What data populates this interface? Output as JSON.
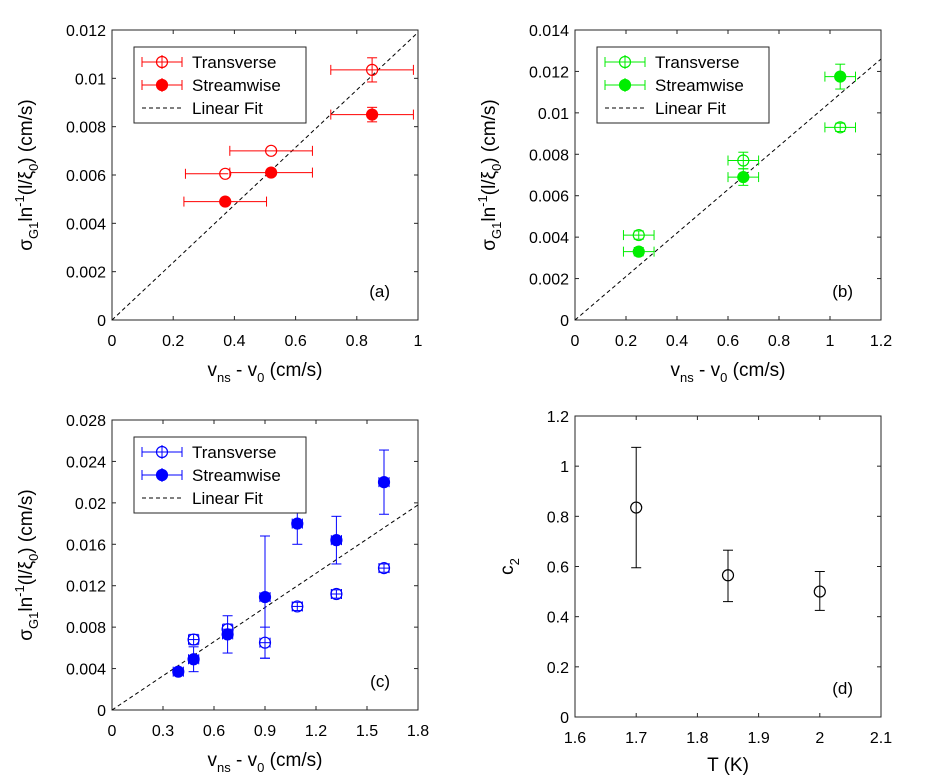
{
  "figure": {
    "panels": [
      "a",
      "b",
      "c",
      "d"
    ]
  },
  "chart_data": [
    {
      "id": "a",
      "type": "scatter",
      "panel_label": "(a)",
      "color": "#ff0000",
      "xlabel": {
        "main": "v",
        "sub1": "ns",
        "mid": " - v",
        "sub2": "0",
        "end": " (cm/s)"
      },
      "ylabel": {
        "sigma": "σ",
        "sub": "G1",
        "ln": "ln",
        "sup": "-1",
        "rest1": "(l/ξ",
        "sub0": "0",
        "rest2": ") (cm/s)"
      },
      "xlim": [
        0,
        1
      ],
      "ylim": [
        0,
        0.012
      ],
      "xticks": [
        0,
        0.2,
        0.4,
        0.6,
        0.8,
        1
      ],
      "xtick_labels": [
        "0",
        "0.2",
        "0.4",
        "0.6",
        "0.8",
        "1"
      ],
      "yticks": [
        0,
        0.002,
        0.004,
        0.006,
        0.008,
        0.01,
        0.012
      ],
      "ytick_labels": [
        "0",
        "0.002",
        "0.004",
        "0.006",
        "0.008",
        "0.01",
        "0.012"
      ],
      "legend": {
        "position": "top-left",
        "entries": [
          "Transverse",
          "Streamwise",
          "Linear Fit"
        ]
      },
      "series": [
        {
          "name": "Transverse",
          "marker": "open-circle",
          "points": [
            {
              "x": 0.37,
              "y": 0.00605,
              "xerr": 0.0,
              "yerr": 0.0
            },
            {
              "x": 0.52,
              "y": 0.007,
              "xerr": 0.135,
              "yerr": 0.0
            },
            {
              "x": 0.85,
              "y": 0.01035,
              "xerr": 0.135,
              "yerr": 0.0005
            }
          ]
        },
        {
          "name": "Streamwise",
          "marker": "filled-circle",
          "points": [
            {
              "x": 0.37,
              "y": 0.0049,
              "xerr": 0.135,
              "yerr": 0.0
            },
            {
              "x": 0.52,
              "y": 0.0061,
              "xerr": 0.135,
              "yerr": 0.0
            },
            {
              "x": 0.85,
              "y": 0.0085,
              "xerr": 0.135,
              "yerr": 0.0003
            }
          ]
        },
        {
          "name": "Linear Fit",
          "line": "dashed",
          "x": [
            0,
            1
          ],
          "y": [
            0,
            0.0119
          ]
        }
      ],
      "extra_hbars": [
        {
          "y": 0.00605,
          "x1": 0.24,
          "x2": 0.38
        }
      ]
    },
    {
      "id": "b",
      "type": "scatter",
      "panel_label": "(b)",
      "color": "#00ee00",
      "xlabel": {
        "main": "v",
        "sub1": "ns",
        "mid": " - v",
        "sub2": "0",
        "end": " (cm/s)"
      },
      "ylabel": {
        "sigma": "σ",
        "sub": "G1",
        "ln": "ln",
        "sup": "-1",
        "rest1": "(l/ξ",
        "sub0": "0",
        "rest2": ") (cm/s)"
      },
      "xlim": [
        0,
        1.2
      ],
      "ylim": [
        0,
        0.014
      ],
      "xticks": [
        0,
        0.2,
        0.4,
        0.6,
        0.8,
        1,
        1.2
      ],
      "xtick_labels": [
        "0",
        "0.2",
        "0.4",
        "0.6",
        "0.8",
        "1",
        "1.2"
      ],
      "yticks": [
        0,
        0.002,
        0.004,
        0.006,
        0.008,
        0.01,
        0.012,
        0.014
      ],
      "ytick_labels": [
        "0",
        "0.002",
        "0.004",
        "0.006",
        "0.008",
        "0.01",
        "0.012",
        "0.014"
      ],
      "legend": {
        "position": "top-left",
        "entries": [
          "Transverse",
          "Streamwise",
          "Linear Fit"
        ]
      },
      "series": [
        {
          "name": "Transverse",
          "marker": "open-circle",
          "points": [
            {
              "x": 0.25,
              "y": 0.0041,
              "xerr": 0.06,
              "yerr": 0.0002
            },
            {
              "x": 0.66,
              "y": 0.0077,
              "xerr": 0.06,
              "yerr": 0.0004
            },
            {
              "x": 1.04,
              "y": 0.0093,
              "xerr": 0.06,
              "yerr": 0.0002
            }
          ]
        },
        {
          "name": "Streamwise",
          "marker": "filled-circle",
          "points": [
            {
              "x": 0.25,
              "y": 0.0033,
              "xerr": 0.06,
              "yerr": 0.0002
            },
            {
              "x": 0.66,
              "y": 0.0069,
              "xerr": 0.06,
              "yerr": 0.0004
            },
            {
              "x": 1.04,
              "y": 0.01175,
              "xerr": 0.06,
              "yerr": 0.0006
            }
          ]
        },
        {
          "name": "Linear Fit",
          "line": "dashed",
          "x": [
            0,
            1.2
          ],
          "y": [
            0,
            0.0126
          ]
        }
      ]
    },
    {
      "id": "c",
      "type": "scatter",
      "panel_label": "(c)",
      "color": "#0000ff",
      "xlabel": {
        "main": "v",
        "sub1": "ns",
        "mid": " - v",
        "sub2": "0",
        "end": " (cm/s)"
      },
      "ylabel": {
        "sigma": "σ",
        "sub": "G1",
        "ln": "ln",
        "sup": "-1",
        "rest1": "(l/ξ",
        "sub0": "0",
        "rest2": ") (cm/s)"
      },
      "xlim": [
        0,
        1.8
      ],
      "ylim": [
        0,
        0.028
      ],
      "xticks": [
        0,
        0.3,
        0.6,
        0.9,
        1.2,
        1.5,
        1.8
      ],
      "xtick_labels": [
        "0",
        "0.3",
        "0.6",
        "0.9",
        "1.2",
        "1.5",
        "1.8"
      ],
      "yticks": [
        0,
        0.004,
        0.008,
        0.012,
        0.016,
        0.02,
        0.024,
        0.028
      ],
      "ytick_labels": [
        "0",
        "0.004",
        "0.008",
        "0.012",
        "0.016",
        "0.02",
        "0.024",
        "0.028"
      ],
      "legend": {
        "position": "top-left",
        "entries": [
          "Transverse",
          "Streamwise",
          "Linear Fit"
        ]
      },
      "series": [
        {
          "name": "Transverse",
          "marker": "open-circle",
          "points": [
            {
              "x": 0.48,
              "y": 0.0068,
              "xerr": 0.03,
              "yerr": 0.0005
            },
            {
              "x": 0.68,
              "y": 0.0078,
              "xerr": 0.03,
              "yerr": 0.0005
            },
            {
              "x": 0.9,
              "y": 0.0065,
              "xerr": 0.03,
              "yerr": 0.0015
            },
            {
              "x": 1.09,
              "y": 0.01,
              "xerr": 0.03,
              "yerr": 0.0004
            },
            {
              "x": 1.32,
              "y": 0.0112,
              "xerr": 0.03,
              "yerr": 0.0004
            },
            {
              "x": 1.6,
              "y": 0.0137,
              "xerr": 0.03,
              "yerr": 0.0004
            }
          ]
        },
        {
          "name": "Streamwise",
          "marker": "filled-circle",
          "points": [
            {
              "x": 0.39,
              "y": 0.0037,
              "xerr": 0.03,
              "yerr": 0.0003
            },
            {
              "x": 0.48,
              "y": 0.0049,
              "xerr": 0.03,
              "yerr": 0.0012
            },
            {
              "x": 0.68,
              "y": 0.0073,
              "xerr": 0.03,
              "yerr": 0.0018
            },
            {
              "x": 0.9,
              "y": 0.0109,
              "xerr": 0.03,
              "yerr": 0.0059
            },
            {
              "x": 1.09,
              "y": 0.018,
              "xerr": 0.03,
              "yerr": 0.002
            },
            {
              "x": 1.32,
              "y": 0.0164,
              "xerr": 0.03,
              "yerr": 0.0023
            },
            {
              "x": 1.6,
              "y": 0.022,
              "xerr": 0.03,
              "yerr": 0.0031
            }
          ]
        },
        {
          "name": "Linear Fit",
          "line": "dashed",
          "x": [
            0,
            1.8
          ],
          "y": [
            0,
            0.0198
          ]
        }
      ]
    },
    {
      "id": "d",
      "type": "scatter",
      "panel_label": "(d)",
      "color": "#000000",
      "xlabel": {
        "text": "T (K)"
      },
      "ylabel": {
        "main": "c",
        "sub": "2"
      },
      "xlim": [
        1.6,
        2.1
      ],
      "ylim": [
        0,
        1.2
      ],
      "xticks": [
        1.6,
        1.7,
        1.8,
        1.9,
        2,
        2.1
      ],
      "xtick_labels": [
        "1.6",
        "1.7",
        "1.8",
        "1.9",
        "2",
        "2.1"
      ],
      "yticks": [
        0,
        0.2,
        0.4,
        0.6,
        0.8,
        1,
        1.2
      ],
      "ytick_labels": [
        "0",
        "0.2",
        "0.4",
        "0.6",
        "0.8",
        "1",
        "1.2"
      ],
      "series": [
        {
          "name": "c2",
          "marker": "open-circle",
          "points": [
            {
              "x": 1.7,
              "y": 0.835,
              "yerr_low": 0.24,
              "yerr_high": 0.24
            },
            {
              "x": 1.85,
              "y": 0.565,
              "yerr_low": 0.105,
              "yerr_high": 0.1
            },
            {
              "x": 2.0,
              "y": 0.5,
              "yerr_low": 0.075,
              "yerr_high": 0.08
            }
          ]
        }
      ]
    }
  ]
}
